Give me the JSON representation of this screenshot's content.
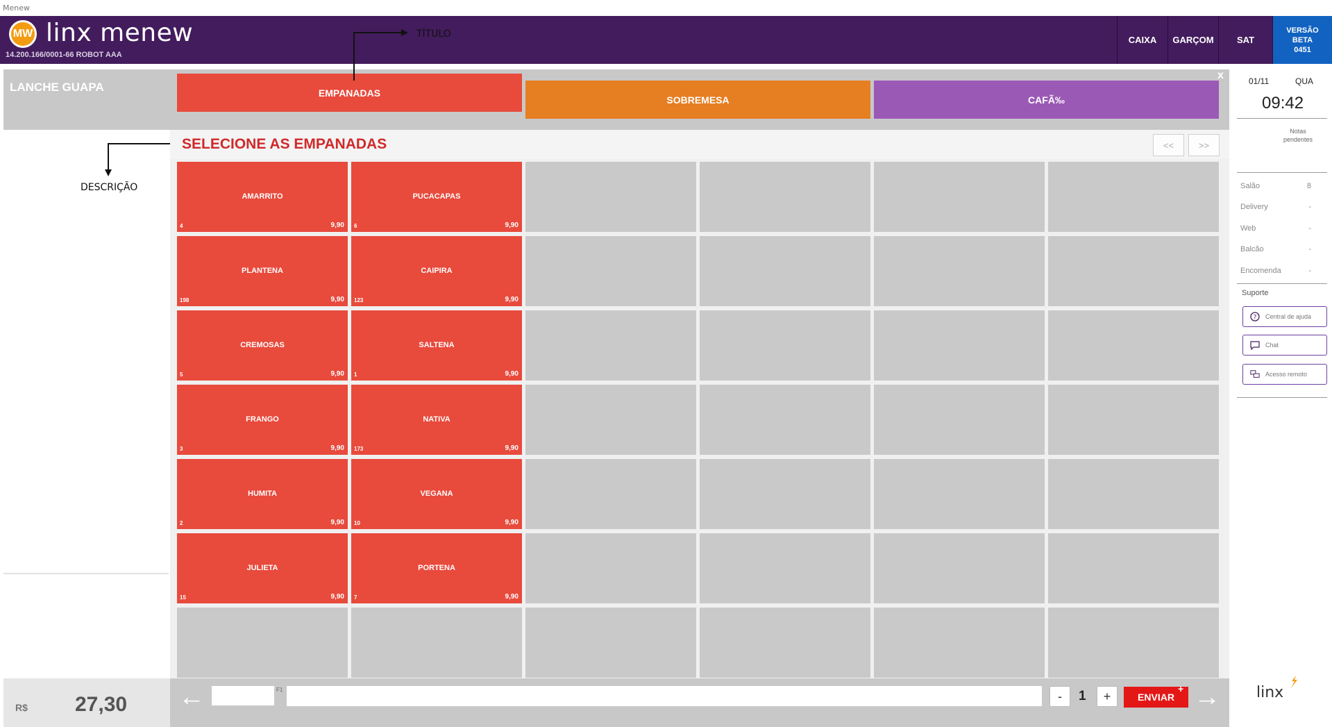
{
  "window": {
    "title": "Menew"
  },
  "header": {
    "logo_initials": "MW",
    "brand": "linx menew",
    "company": "14.200.166/0001-66 ROBOT AAA",
    "buttons": [
      "CAIXA",
      "GARÇOM",
      "SAT"
    ],
    "version": {
      "line1": "VERSÃO",
      "line2": "BETA",
      "line3": "0451"
    }
  },
  "annotations": {
    "title_label": "TÍTULO",
    "description_label": "DESCRIÇÃO"
  },
  "store": {
    "name": "LANCHE GUAPA"
  },
  "categories": [
    {
      "label": "EMPANADAS",
      "color": "#e84a3c"
    },
    {
      "label": "SOBREMESA",
      "color": "#e67e22"
    },
    {
      "label": "CAFÃ‰",
      "color": "#9b59b6"
    }
  ],
  "close_label": "x",
  "section": {
    "title": "SELECIONE AS EMPANADAS",
    "prev": "<<",
    "next": ">>"
  },
  "products": [
    {
      "name": "AMARRITO",
      "code": "4",
      "price": "9,90"
    },
    {
      "name": "PUCACAPAS",
      "code": "6",
      "price": "9,90"
    },
    {
      "name": "PLANTENA",
      "code": "198",
      "price": "9,90"
    },
    {
      "name": "CAIPIRA",
      "code": "123",
      "price": "9,90"
    },
    {
      "name": "CREMOSAS",
      "code": "5",
      "price": "9,90"
    },
    {
      "name": "SALTENA",
      "code": "1",
      "price": "9,90"
    },
    {
      "name": "FRANGO",
      "code": "3",
      "price": "9,90"
    },
    {
      "name": "NATIVA",
      "code": "173",
      "price": "9,90"
    },
    {
      "name": "HUMITA",
      "code": "2",
      "price": "9,90"
    },
    {
      "name": "VEGANA",
      "code": "10",
      "price": "9,90"
    },
    {
      "name": "JULIETA",
      "code": "15",
      "price": "9,90"
    },
    {
      "name": "PORTENA",
      "code": "7",
      "price": "9,90"
    }
  ],
  "sidebar": {
    "date": "01/11",
    "weekday": "QUA",
    "time": "09:42",
    "pending_notes": "Notas pendentes",
    "channels": [
      {
        "name": "Salão",
        "value": "8"
      },
      {
        "name": "Delivery",
        "value": "-"
      },
      {
        "name": "Web",
        "value": "-"
      },
      {
        "name": "Balcão",
        "value": "-"
      },
      {
        "name": "Encomenda",
        "value": "-"
      }
    ],
    "support_title": "Suporte",
    "support_buttons": [
      {
        "label": "Central de ajuda",
        "icon": "help-icon"
      },
      {
        "label": "Chat",
        "icon": "chat-icon"
      },
      {
        "label": "Acesso remoto",
        "icon": "remote-access-icon"
      }
    ]
  },
  "footer": {
    "currency": "R$",
    "total": "27,30",
    "code_hint": "F1",
    "quantity": "1",
    "minus": "-",
    "plus": "+",
    "send": "ENVIAR",
    "send_badge": "+",
    "brand": "linx"
  }
}
